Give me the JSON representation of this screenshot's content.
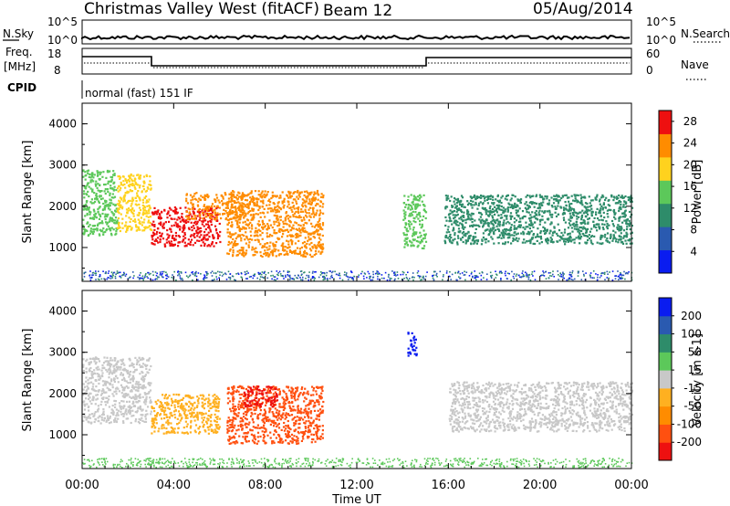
{
  "header": {
    "station": "Christmas Valley West (fitACF)",
    "beam": "Beam 12",
    "date": "05/Aug/2014"
  },
  "panels": {
    "nsky": {
      "label": "N.Sky",
      "ticks": [
        "10^5",
        "10^0"
      ]
    },
    "nsearch": {
      "label": "N.Search",
      "ticks": [
        "10^5",
        "10^0"
      ]
    },
    "freq": {
      "label_line1": "Freq.",
      "label_line2": "[MHz]",
      "ticks": [
        "18",
        "8"
      ]
    },
    "nave": {
      "label": "Nave",
      "ticks": [
        "60",
        "0"
      ]
    },
    "cpid": {
      "label": "CPID",
      "value": "normal (fast) 151 IF"
    }
  },
  "chart_data": [
    {
      "type": "heatmap",
      "title": "Power",
      "xlabel": "Time UT",
      "ylabel": "Slant Range [km]",
      "x_ticks": [
        "00:00",
        "04:00",
        "08:00",
        "12:00",
        "16:00",
        "20:00",
        "00:00"
      ],
      "y_ticks": [
        "1000",
        "2000",
        "3000",
        "4000"
      ],
      "ylim": [
        180,
        4500
      ],
      "colorbar": {
        "label": "Power [dB]",
        "ticks": [
          "4",
          "8",
          "12",
          "16",
          "20",
          "24",
          "28"
        ],
        "range": [
          0,
          30
        ],
        "colors": [
          "#0a1cf0",
          "#2a5ab0",
          "#2e8c6a",
          "#5cc85a",
          "#ffd21e",
          "#ff8c00",
          "#ee1010"
        ]
      },
      "regions": [
        {
          "t0": 0.0,
          "t1": 1.5,
          "r0": 1300,
          "r1": 2900,
          "level": 3
        },
        {
          "t0": 1.5,
          "t1": 3.0,
          "r0": 1400,
          "r1": 2800,
          "level": 4
        },
        {
          "t0": 3.0,
          "t1": 6.0,
          "r0": 1050,
          "r1": 2000,
          "level": 6
        },
        {
          "t0": 4.5,
          "t1": 7.0,
          "r0": 1700,
          "r1": 2350,
          "level": 5
        },
        {
          "t0": 6.3,
          "t1": 10.5,
          "r0": 800,
          "r1": 2400,
          "level": 5
        },
        {
          "t0": 14.0,
          "t1": 15.0,
          "r0": 1000,
          "r1": 2300,
          "level": 3
        },
        {
          "t0": 15.8,
          "t1": 24.0,
          "r0": 1100,
          "r1": 2300,
          "level": 2
        }
      ]
    },
    {
      "type": "heatmap",
      "title": "Velocity",
      "xlabel": "Time UT",
      "ylabel": "Slant Range [km]",
      "x_ticks": [
        "00:00",
        "04:00",
        "08:00",
        "12:00",
        "16:00",
        "20:00",
        "00:00"
      ],
      "y_ticks": [
        "1000",
        "2000",
        "3000",
        "4000"
      ],
      "ylim": [
        180,
        4500
      ],
      "colorbar": {
        "label": "Velocity [m s-1]",
        "ticks": [
          "200",
          "100",
          "50",
          "15",
          "-15",
          "-50",
          "-100",
          "-200"
        ],
        "range": [
          -250,
          250
        ],
        "colors": [
          "#0a1cf0",
          "#2a5ab0",
          "#2e8c6a",
          "#5cc85a",
          "#c8c8c8",
          "#ffb020",
          "#ff8c00",
          "#ff5010",
          "#ee1010"
        ]
      },
      "regions": [
        {
          "t0": 0.0,
          "t1": 3.0,
          "r0": 1300,
          "r1": 2900,
          "v": 0
        },
        {
          "t0": 3.0,
          "t1": 6.0,
          "r0": 1050,
          "r1": 2000,
          "v": -40
        },
        {
          "t0": 6.3,
          "t1": 10.5,
          "r0": 800,
          "r1": 2200,
          "v": -100
        },
        {
          "t0": 7.0,
          "t1": 8.5,
          "r0": 1700,
          "r1": 2200,
          "v": -180
        },
        {
          "t0": 14.2,
          "t1": 14.6,
          "r0": 2900,
          "r1": 3500,
          "v": 180
        },
        {
          "t0": 16.0,
          "t1": 24.0,
          "r0": 1100,
          "r1": 2300,
          "v": 0
        }
      ]
    }
  ]
}
